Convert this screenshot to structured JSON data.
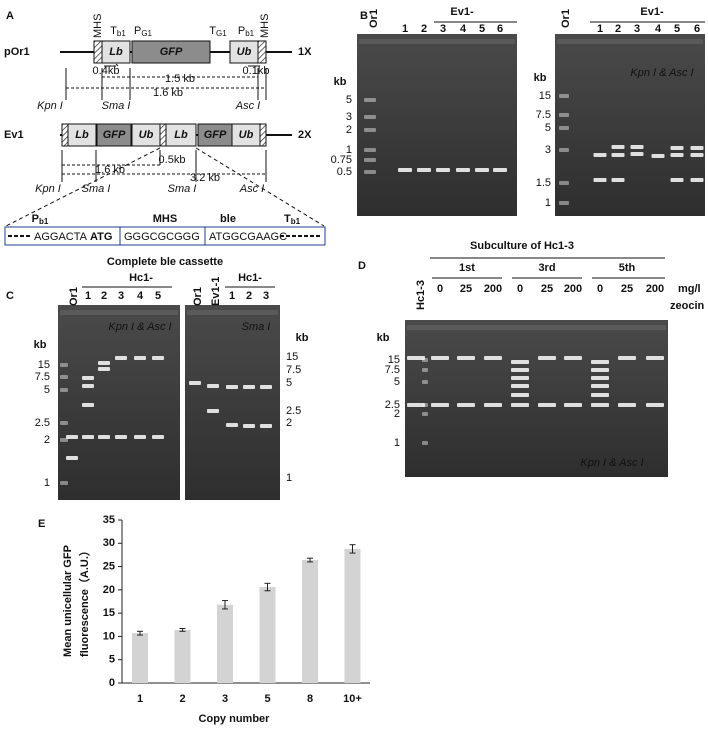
{
  "panel_labels": [
    "A",
    "B",
    "C",
    "D",
    "E"
  ],
  "panel_a": {
    "por1": {
      "name": "pOr1",
      "copies": "1X",
      "elements": {
        "mhs_left": "MHS",
        "tb1": {
          "t": "T",
          "sub": "b1"
        },
        "pg1": {
          "t": "P",
          "sub": "G1"
        },
        "tg1": {
          "t": "T",
          "sub": "G1"
        },
        "pb1": {
          "t": "P",
          "sub": "b1"
        },
        "mhs_right": "MHS",
        "lb": "Lb",
        "gfp": "GFP",
        "ub": "Ub"
      },
      "distances": [
        "0.4kb",
        "1.5 kb",
        "1.6 kb",
        "0.1kb"
      ],
      "sites": [
        "Kpn I",
        "Sma I",
        "Asc I"
      ]
    },
    "ev1": {
      "name": "Ev1",
      "copies": "2X",
      "boxes": [
        "Lb",
        "GFP",
        "Ub",
        "Lb",
        "GFP",
        "Ub"
      ],
      "distances": [
        "1.6 kb",
        "0.5kb",
        "3.2 kb"
      ],
      "sites": [
        "Kpn I",
        "Sma I",
        "Sma I",
        "Asc I"
      ]
    },
    "cassette": {
      "headers": [
        {
          "t": "P",
          "sub": "b1"
        },
        {
          "t": "MHS"
        },
        {
          "t": "ble"
        },
        {
          "t": "T",
          "sub": "b1"
        }
      ],
      "seq": [
        "AGGACTA",
        "ATG",
        "GGGCGCGGG",
        "ATGGCGAAGC"
      ],
      "caption": "Complete ble cassette"
    }
  },
  "panel_b": {
    "left": {
      "control": "Or1",
      "header": "Ev1-",
      "lanes": [
        "1",
        "2",
        "3",
        "4",
        "5",
        "6"
      ],
      "ladder_unit": "kb",
      "ladder": [
        "5",
        "3",
        "2",
        "1",
        "0.75",
        "0.5"
      ]
    },
    "right": {
      "control": "Or1",
      "header": "Ev1-",
      "lanes": [
        "1",
        "2",
        "3",
        "4",
        "5",
        "6"
      ],
      "enzymes": "Kpn I & Asc I",
      "ladder_unit": "kb",
      "ladder": [
        "15",
        "7.5",
        "5",
        "3",
        "1.5",
        "1"
      ]
    }
  },
  "panel_c": {
    "left": {
      "control": "Or1",
      "header": "Hc1-",
      "lanes": [
        "1",
        "2",
        "3",
        "4",
        "5"
      ],
      "enzymes": "Kpn I & Asc I",
      "ladder_unit": "kb",
      "ladder": [
        "15",
        "7.5",
        "5",
        "2.5",
        "2",
        "1"
      ]
    },
    "right": {
      "controls": [
        "Or1",
        "Ev1-1"
      ],
      "header": "Hc1-",
      "lanes": [
        "1",
        "2",
        "3"
      ],
      "enzymes": "Sma I",
      "ladder_unit": "kb",
      "ladder": [
        "15",
        "7.5",
        "5",
        "2.5",
        "2",
        "1"
      ]
    }
  },
  "panel_d": {
    "title": "Subculture of Hc1-3",
    "control": "Hc1-3",
    "groups": [
      {
        "name": "1st",
        "doses": [
          "0",
          "25",
          "200"
        ]
      },
      {
        "name": "3rd",
        "doses": [
          "0",
          "25",
          "200"
        ]
      },
      {
        "name": "5th",
        "doses": [
          "0",
          "25",
          "200"
        ]
      }
    ],
    "unit": [
      "mg/l",
      "zeocin"
    ],
    "enzymes": "Kpn I & Asc I",
    "ladder_unit": "kb",
    "ladder": [
      "15",
      "7.5",
      "5",
      "2.5",
      "2",
      "1"
    ]
  },
  "chart_data": {
    "type": "bar",
    "categories": [
      "1",
      "2",
      "3",
      "5",
      "8",
      "10+"
    ],
    "values": [
      10.7,
      11.4,
      16.8,
      20.6,
      26.4,
      28.8
    ],
    "errors": [
      0.4,
      0.3,
      0.9,
      0.8,
      0.4,
      0.9
    ],
    "color": "#d3d3d3",
    "ylim": [
      0,
      35
    ],
    "yticks": [
      0,
      5,
      10,
      15,
      20,
      25,
      30,
      35
    ],
    "y_label": [
      "Mean unicellular GFP",
      "fluorescence（A.U.）"
    ],
    "x_label": "Copy number"
  }
}
